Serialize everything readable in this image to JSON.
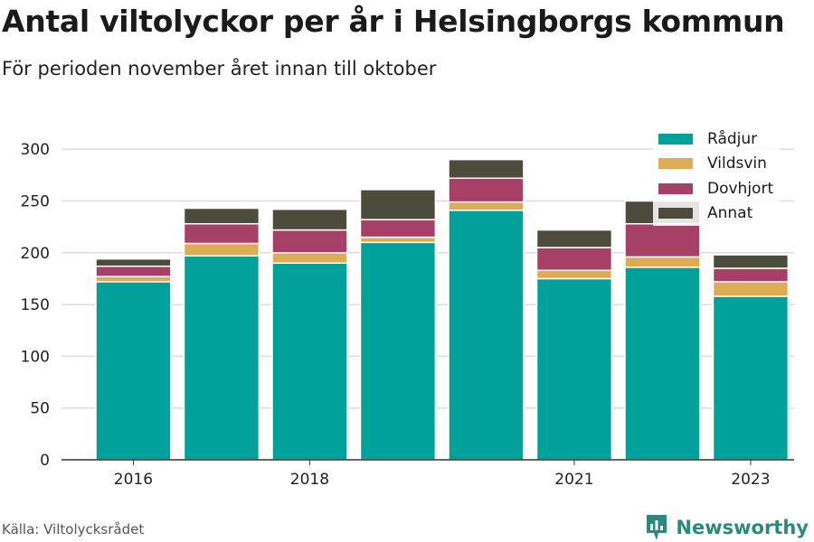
{
  "title": "Antal viltolyckor per år i Helsingborgs kommun",
  "subtitle": "För perioden november året innan till oktober",
  "source": "Källa: Viltolycksrådet",
  "brand": "Newsworthy",
  "brand_color": "#2a8a80",
  "chart_data": {
    "type": "bar",
    "stacked": true,
    "categories": [
      "2016",
      "2017",
      "2018",
      "2019",
      "2020",
      "2021",
      "2022",
      "2023"
    ],
    "x_tick_labels": [
      "2016",
      "",
      "2018",
      "",
      "",
      "2021",
      "",
      "2023"
    ],
    "y_ticks": [
      0,
      50,
      100,
      150,
      200,
      250,
      300
    ],
    "ylim": [
      0,
      315
    ],
    "grid": true,
    "legend_position": "top-right",
    "series": [
      {
        "name": "Rådjur",
        "color": "#00a19a",
        "values": [
          172,
          197,
          190,
          210,
          241,
          175,
          186,
          158
        ]
      },
      {
        "name": "Vildsvin",
        "color": "#dcad55",
        "values": [
          5,
          12,
          10,
          5,
          8,
          8,
          10,
          14
        ]
      },
      {
        "name": "Dovhjort",
        "color": "#a64066",
        "values": [
          10,
          19,
          22,
          17,
          23,
          22,
          32,
          13
        ]
      },
      {
        "name": "Annat",
        "color": "#4c4c3c",
        "values": [
          7,
          15,
          20,
          29,
          18,
          17,
          22,
          13
        ]
      }
    ]
  }
}
